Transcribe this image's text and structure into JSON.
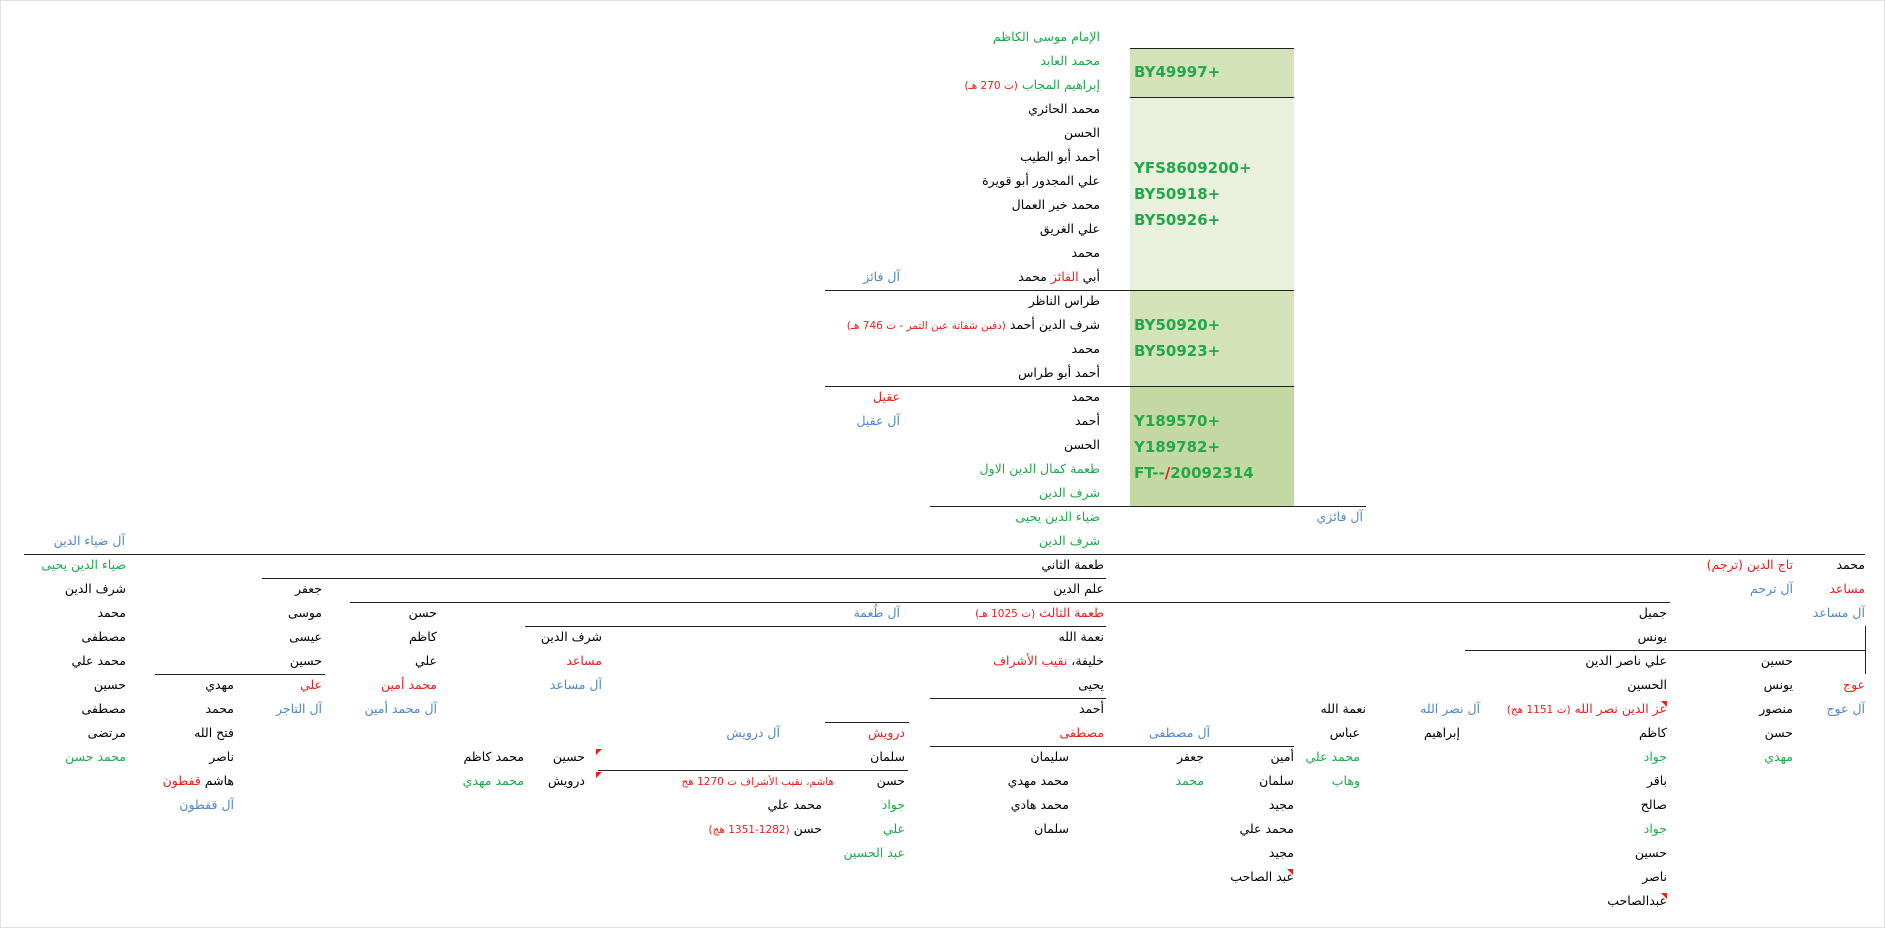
{
  "colors": {
    "black": "#000000",
    "green": "#1fa84a",
    "red": "#e8201c",
    "blue": "#4f86c6",
    "band1": "#d3e2b8",
    "band2": "#e9f0dc",
    "band3": "#d3e2b8",
    "band4": "#c4d8a3"
  },
  "upper": {
    "l1": "الإمام موسى الكاظم",
    "l2": "محمد العابد",
    "l3_name": "إبراهيم المجاب",
    "l3_note": "(ت 270 هـ)",
    "l4": "محمد الحائري",
    "l5": "الحسن",
    "l6": "أحمد أبو الطيب",
    "l7": "علي المجدور أبو قويرة",
    "l8": "محمد خير العمال",
    "l9": "علي الغريق",
    "l10": "محمد",
    "l11_a": "أبي",
    "l11_b": "الفائز",
    "l11_c": "محمد",
    "al_faiz": "آل فائز",
    "l12": "طراس الناظر",
    "l13_name": "شرف الدين أحمد",
    "l13_note": "(دفين شفاثة عين التمر - ت 746 هـ)",
    "l14": "محمد",
    "l15": "أحمد أبو طراس",
    "l16": "محمد",
    "aqeel": "عقيل",
    "l17": "أحمد",
    "al_aqeel": "آل عقيل",
    "l18": "الحسن",
    "l19": "طعمة كمال الدين الاول",
    "l20": "شرف الدين",
    "l21": "ضياء الدين يحيى",
    "al_faizi": "آل فائزي",
    "l22": "شرف الدين"
  },
  "haplo": {
    "h1": "BY49997+",
    "h2": "YFS8609200+",
    "h3": "BY50918+",
    "h4": "BY50926+",
    "h5": "BY50920+",
    "h6": "BY50923+",
    "h7": "Y189570+",
    "h8": "Y189782+",
    "h9_a": "FT--",
    "h9_b": "/",
    "h9_c": "20092314"
  },
  "main": {
    "tuma2": "طعمة الثاني",
    "alam": "علم الدين",
    "tuma3_name": "طعمة الثالث",
    "tuma3_note": "(ت 1025 هـ)",
    "al_tuma": "آل طُعمة",
    "nima": "نعمة الله",
    "khalifa_a": "خليفة،",
    "khalifa_b": "نقيب الأشراف",
    "yahya": "يحيى",
    "ahmad": "أحمد",
    "mustafa": "مصطفى",
    "al_mustafa": "آل مصطفى",
    "sulaiman": "سليمان",
    "m_mahdi": "محمد مهدي",
    "m_hadi": "محمد هادي",
    "salman": "سلمان",
    "jafar": "جعفر",
    "muhammad": "محمد",
    "nima2": "نعمة الله",
    "abbas": "عباس",
    "amin": "أمين",
    "m_ali_g": "محمد علي",
    "salman2": "سلمان",
    "wahhab": "وهاب",
    "majeed": "مجيد",
    "m_ali": "محمد علي",
    "majeed2": "مجيد",
    "abd_sahib": "عبد الصاحب"
  },
  "darwish": {
    "darwish": "درويش",
    "al_darwish": "آل درويش",
    "salman": "سلمان",
    "hasan": "حسن",
    "hashim": "هاشم، نقيب الأشراف ت 1270 هج",
    "jawad": "جواد",
    "m_ali": "محمد علي",
    "ali": "علي",
    "hasan2": "حسن",
    "hasan2_note": "(1282-1351 هج)",
    "abd_husain": "عبد الحسين"
  },
  "sharaf": {
    "sharaf": "شرف الدين",
    "musaed": "مساعد",
    "al_musaed": "آل مساعد",
    "husain": "حسين",
    "darwish2": "درويش",
    "m_kazim": "محمد كاظم",
    "m_mahdi": "محمد مهدي"
  },
  "hasan_col": {
    "hasan": "حسن",
    "kazim": "كاظم",
    "ali": "علي",
    "m_amin": "محمد أمين",
    "al_m_amin": "آل محمد أمين"
  },
  "jafar_col": {
    "jafar": "جعفر",
    "musa": "موسى",
    "isa": "عيسى",
    "husain": "حسين",
    "ali": "علي",
    "al_tajir": "آل التاجر",
    "mahdi": "مهدي",
    "m": "محمد",
    "fathallah": "فتح الله",
    "nasir": "ناصر",
    "hashim": "هاشم",
    "qatun": "قفطون",
    "al_qatun": "آل قفطون"
  },
  "left_col": {
    "al_diya": "آل ضياء الدين",
    "diya": "ضياء الدين يحيى",
    "sharaf": "شرف الدين",
    "m": "محمد",
    "mustafa": "مصطفى",
    "m_ali": "محمد علي",
    "husain": "حسين",
    "mustafa2": "مصطفى",
    "murtada": "مرتضى",
    "m_hasan": "محمد حسن"
  },
  "right_side": {
    "muhammad": "محمد",
    "taj": "تاج الدين (ترجم)",
    "musaed": "مساعد",
    "al_tarjum": "آل ترجم",
    "al_musaed": "آل مساعد",
    "jamil": "جميل",
    "yunus": "يونس",
    "ali_nasir": "علي ناصر الدين",
    "husain": "حسين",
    "al_husain": "الحسين",
    "yunus2": "يونس",
    "auj": "عوج",
    "izz_name": "عز الدين نصر الله",
    "izz_note": "(ت 1151 هج)",
    "al_nasrallah": "آل نصر الله",
    "mansur": "منصور",
    "al_auj": "آل عوج",
    "ibrahim": "إبراهيم",
    "kazim": "كاظم",
    "hasan": "حسن",
    "jawad": "جواد",
    "mahdi": "مهدي",
    "baqir": "باقر",
    "salih": "صالح",
    "jawad2": "جواد",
    "husain2": "حسين",
    "nasir": "ناصر",
    "abd_sahib": "عبدالصاحب"
  }
}
